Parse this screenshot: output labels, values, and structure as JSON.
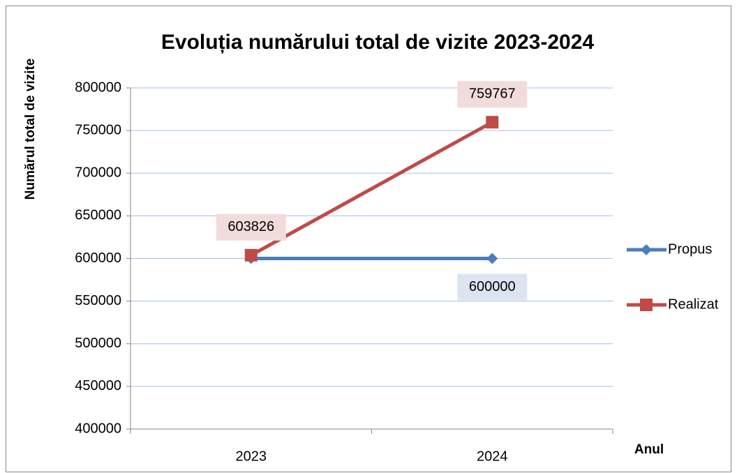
{
  "chart_data": {
    "type": "line",
    "title": "Evoluția numărului total de vizite 2023-2024",
    "y_label": "Numărul total de vizite",
    "x_label": "Anul",
    "categories": [
      "2023",
      "2024"
    ],
    "series": [
      {
        "name": "Propus",
        "color": "#4a7ebb",
        "marker": "diamond",
        "values": [
          600000,
          600000
        ],
        "labels": [
          false,
          true
        ]
      },
      {
        "name": "Realizat",
        "color": "#be4b48",
        "marker": "square",
        "values": [
          603826,
          759767
        ],
        "labels": [
          true,
          true
        ]
      }
    ],
    "ylim": [
      400000,
      800000
    ],
    "yticks": [
      400000,
      450000,
      500000,
      550000,
      600000,
      650000,
      700000,
      750000,
      800000
    ],
    "grid": true,
    "legend": "right"
  }
}
